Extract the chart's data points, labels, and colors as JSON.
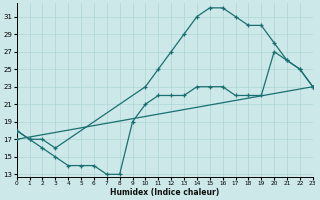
{
  "xlabel": "Humidex (Indice chaleur)",
  "bg_color": "#cce8e8",
  "line_color": "#1a7070",
  "grid_color": "#afd4d4",
  "ylim": [
    13,
    32
  ],
  "xlim": [
    0,
    23
  ],
  "yticks": [
    13,
    15,
    17,
    19,
    21,
    23,
    25,
    27,
    29,
    31
  ],
  "xticks": [
    0,
    1,
    2,
    3,
    4,
    5,
    6,
    7,
    8,
    9,
    10,
    11,
    12,
    13,
    14,
    15,
    16,
    17,
    18,
    19,
    20,
    21,
    22,
    23
  ],
  "line1_x": [
    0,
    1,
    2,
    3,
    10,
    11,
    12,
    13,
    14,
    15,
    16,
    17,
    18,
    19,
    20,
    21,
    22,
    23
  ],
  "line1_y": [
    18,
    17,
    17,
    16,
    23,
    25,
    27,
    29,
    31,
    32,
    32,
    31,
    30,
    30,
    28,
    26,
    25,
    23
  ],
  "line2_x": [
    0,
    1,
    2,
    3,
    4,
    5,
    6,
    7,
    8,
    9,
    10,
    11,
    12,
    13,
    14,
    15,
    16,
    17,
    18,
    19,
    20,
    21,
    22,
    23
  ],
  "line2_y": [
    18,
    17,
    16,
    15,
    14,
    14,
    14,
    13,
    13,
    19,
    21,
    22,
    22,
    22,
    23,
    23,
    23,
    22,
    22,
    22,
    27,
    26,
    25,
    23
  ],
  "line3_x": [
    0,
    23
  ],
  "line3_y": [
    17,
    23
  ]
}
